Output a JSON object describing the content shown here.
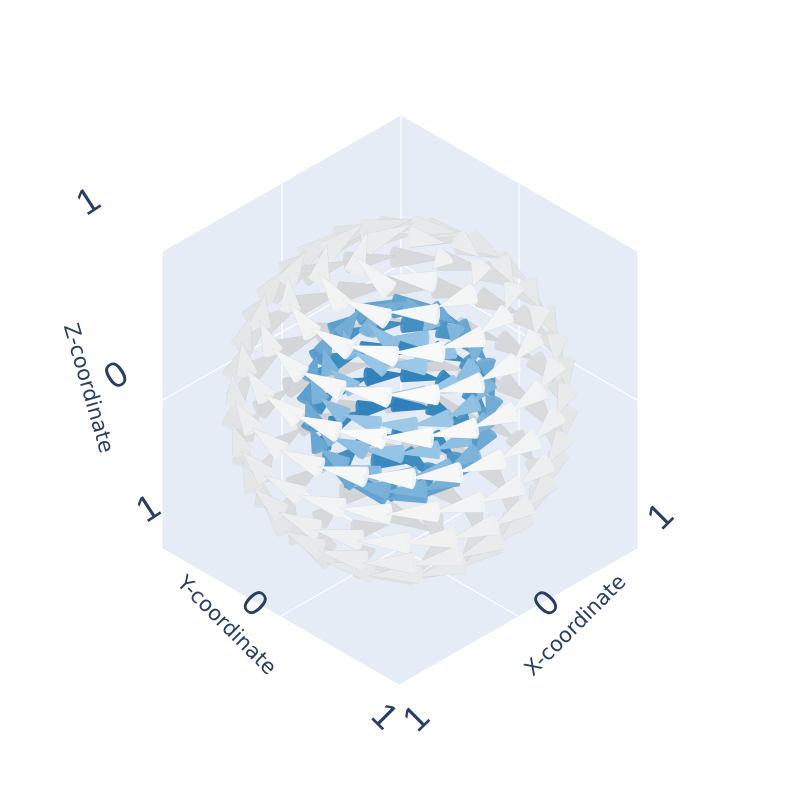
{
  "chart_data": {
    "type": "cone",
    "description_values": "3D vector field shown as cones on two concentric spheres",
    "axes": {
      "x": {
        "title": "X-coordinate",
        "range": [
          -1,
          1
        ],
        "ticks": [
          "1",
          "0",
          "1"
        ]
      },
      "y": {
        "title": "Y-coordinate",
        "range": [
          -1,
          1
        ],
        "ticks": [
          "1",
          "0",
          "1"
        ]
      },
      "z": {
        "title": "Z-coordinate",
        "range": [
          -1,
          1
        ],
        "ticks": [
          "1",
          "0",
          "1"
        ]
      }
    },
    "series": [
      {
        "radius": 0.55,
        "colorscale": [
          "#1f77b4",
          "#aed4ef"
        ],
        "lat_rings": 9,
        "per_ring": 16
      },
      {
        "radius": 1.0,
        "colorscale": [
          "#c9cccf",
          "#ffffff"
        ],
        "lat_rings": 12,
        "per_ring": 22
      }
    ],
    "field": "rotational (-y, x, small z)",
    "colors": {
      "scene_bg": "#e5ecf6",
      "grid": "#ffffff",
      "text": "#2a3f5f"
    }
  }
}
